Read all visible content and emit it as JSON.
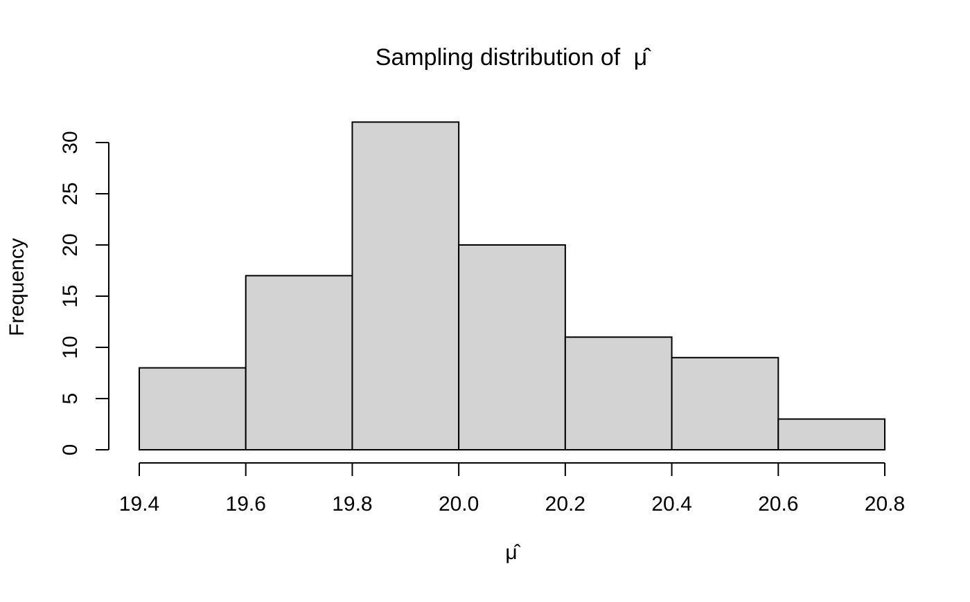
{
  "chart_data": {
    "type": "bar",
    "title": "Sampling distribution of μ̂",
    "title_prefix": "Sampling distribution of",
    "title_symbol": "μ̂",
    "xlabel": "μ̂",
    "ylabel": "Frequency",
    "bins": [
      {
        "start": 19.4,
        "end": 19.6,
        "value": 8
      },
      {
        "start": 19.6,
        "end": 19.8,
        "value": 17
      },
      {
        "start": 19.8,
        "end": 20.0,
        "value": 32
      },
      {
        "start": 20.0,
        "end": 20.2,
        "value": 20
      },
      {
        "start": 20.2,
        "end": 20.4,
        "value": 11
      },
      {
        "start": 20.4,
        "end": 20.6,
        "value": 9
      },
      {
        "start": 20.6,
        "end": 20.8,
        "value": 3
      }
    ],
    "x_ticks": [
      19.4,
      19.6,
      19.8,
      20.0,
      20.2,
      20.4,
      20.6,
      20.8
    ],
    "x_tick_labels": [
      "19.4",
      "19.6",
      "19.8",
      "20.0",
      "20.2",
      "20.4",
      "20.6",
      "20.8"
    ],
    "y_ticks": [
      0,
      5,
      10,
      15,
      20,
      25,
      30
    ],
    "y_tick_labels": [
      "0",
      "5",
      "10",
      "15",
      "20",
      "25",
      "30"
    ],
    "xlim": [
      19.4,
      20.8
    ],
    "ylim": [
      0,
      32
    ],
    "grid": false,
    "legend": "none",
    "bar_color": "#d3d3d3",
    "edge_color": "#000000"
  }
}
